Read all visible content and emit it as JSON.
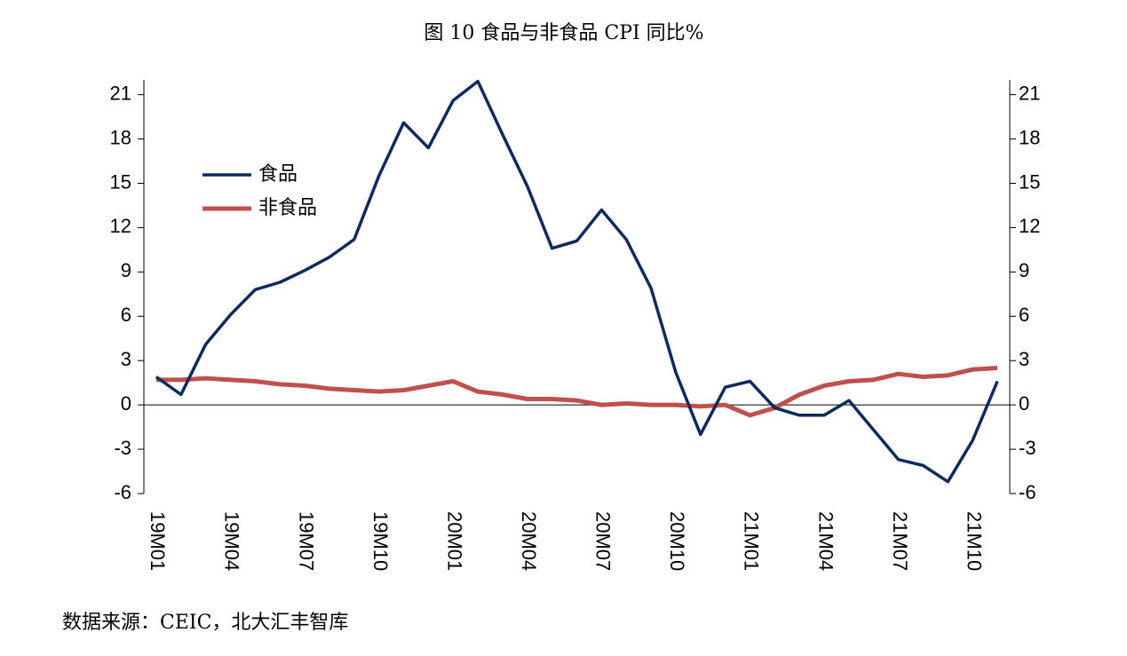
{
  "chart_data": {
    "type": "line",
    "title": "图 10 食品与非食品 CPI 同比%",
    "source": "数据来源：CEIC，北大汇丰智库",
    "categories": [
      "19M01",
      null,
      null,
      "19M04",
      null,
      null,
      "19M07",
      null,
      null,
      "19M10",
      null,
      null,
      "20M01",
      null,
      null,
      "20M04",
      null,
      null,
      "20M07",
      null,
      null,
      "20M10",
      null,
      null,
      "21M01",
      null,
      null,
      "21M04",
      null,
      null,
      "21M07",
      null,
      null,
      "21M10",
      null
    ],
    "series": [
      {
        "name": "食品",
        "color": "#0e2a5e",
        "values": [
          1.9,
          0.7,
          4.1,
          6.1,
          7.8,
          8.3,
          9.1,
          10.0,
          11.2,
          15.5,
          19.1,
          17.4,
          20.6,
          21.9,
          18.3,
          14.8,
          10.6,
          11.1,
          13.2,
          11.2,
          7.9,
          2.2,
          -2.0,
          1.2,
          1.6,
          -0.2,
          -0.7,
          -0.7,
          0.3,
          -1.7,
          -3.7,
          -4.1,
          -5.2,
          -2.4,
          1.6
        ]
      },
      {
        "name": "非食品",
        "color": "#c0504d",
        "values": [
          1.7,
          1.7,
          1.8,
          1.7,
          1.6,
          1.4,
          1.3,
          1.1,
          1.0,
          0.9,
          1.0,
          1.3,
          1.6,
          0.9,
          0.7,
          0.4,
          0.4,
          0.3,
          0.0,
          0.1,
          0.0,
          0.0,
          -0.1,
          0.0,
          -0.7,
          -0.2,
          0.7,
          1.3,
          1.6,
          1.7,
          2.1,
          1.9,
          2.0,
          2.4,
          2.5
        ]
      }
    ],
    "ylim": [
      -6,
      22
    ],
    "yticks": [
      -6,
      -3,
      0,
      3,
      6,
      9,
      12,
      15,
      18,
      21
    ],
    "y2lim": [
      -6,
      22
    ],
    "y2ticks": [
      -6,
      -3,
      0,
      3,
      6,
      9,
      12,
      15,
      18,
      21
    ],
    "legend": "upper left"
  }
}
